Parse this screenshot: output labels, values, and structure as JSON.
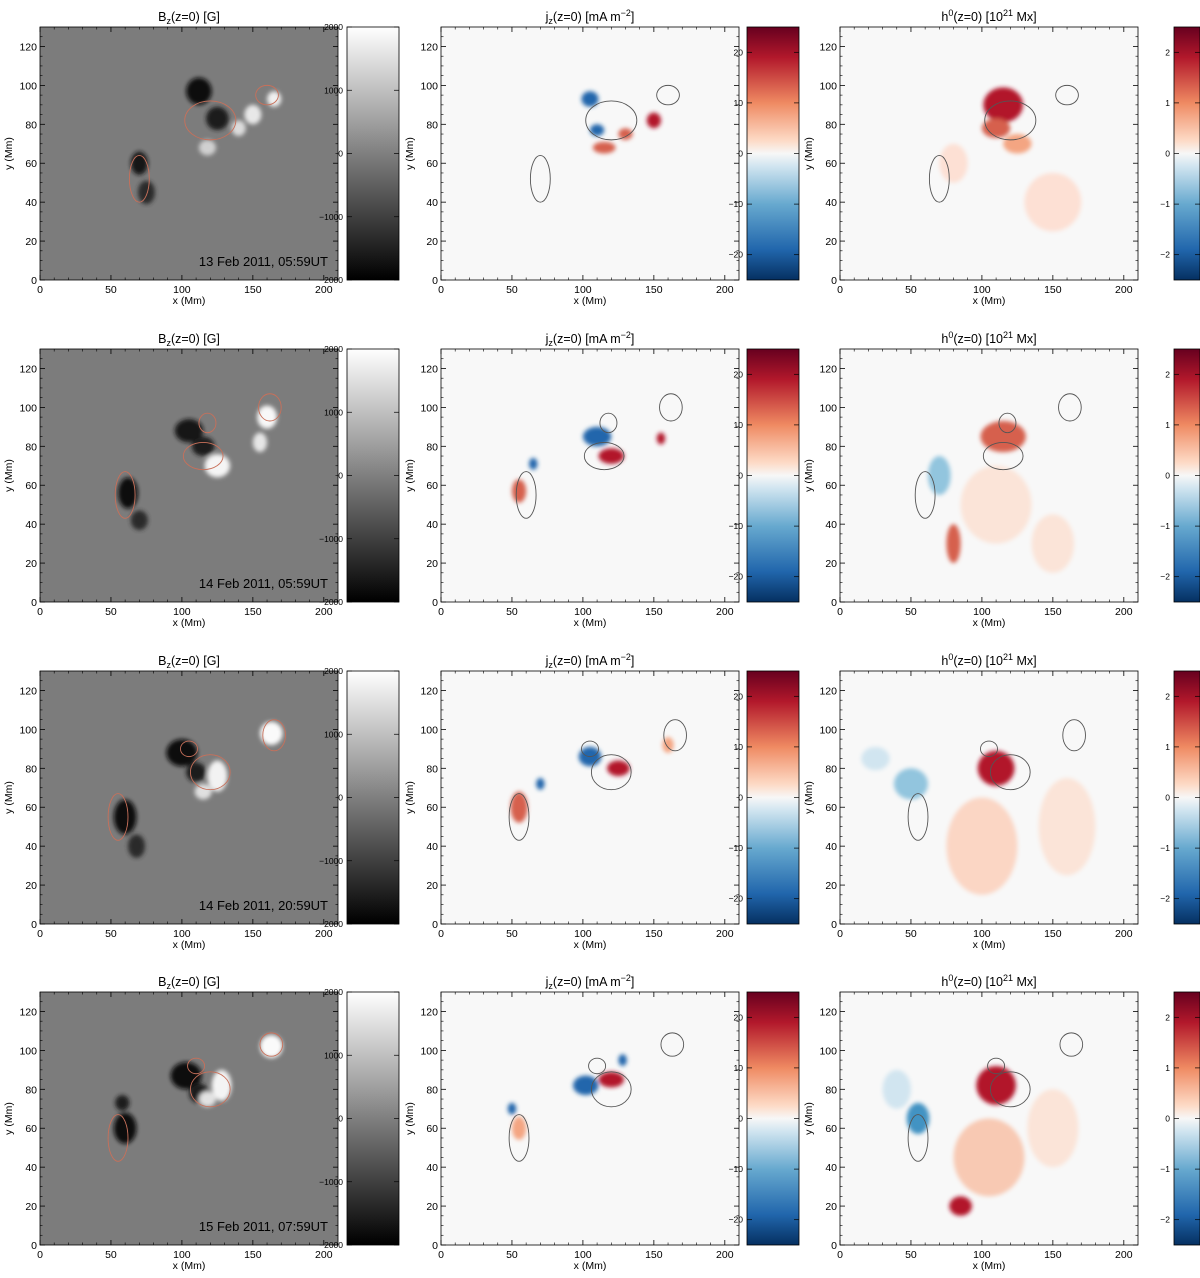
{
  "chart_data": [
    {
      "type": "heatmap",
      "rows": [
        {
          "timestamp": "13 Feb 2011, 05:59UT"
        },
        {
          "timestamp": "14 Feb 2011, 05:59UT"
        },
        {
          "timestamp": "14 Feb 2011, 20:59UT"
        },
        {
          "timestamp": "15 Feb 2011, 07:59UT"
        }
      ],
      "columns": [
        {
          "id": "bz",
          "title_main": "B",
          "title_sub": "z",
          "title_rest": "(z=0) [G]",
          "colormap": "gray",
          "cbar_ticks": [
            "2000",
            "1000",
            "0",
            "−1000",
            "−2000"
          ],
          "cbar_range": [
            -2000,
            2000
          ]
        },
        {
          "id": "jz",
          "title_main": "j",
          "title_sub": "z",
          "title_rest": "(z=0) [mA m",
          "title_sup": "−2",
          "title_end": "]",
          "colormap": "red-blue",
          "cbar_ticks": [
            "20",
            "10",
            "0",
            "−10",
            "−20"
          ],
          "cbar_range": [
            -25,
            25
          ]
        },
        {
          "id": "h0",
          "title_main": "h",
          "title_sup0": "0",
          "title_rest": "(z=0) [10",
          "title_sup": "21",
          "title_end": " Mx]",
          "colormap": "red-blue",
          "cbar_ticks": [
            "2",
            "1",
            "0",
            "−1",
            "−2"
          ],
          "cbar_range": [
            -2.5,
            2.5
          ]
        }
      ],
      "xlabel": "x (Mm)",
      "ylabel": "y (Mm)",
      "xticks": [
        "0",
        "50",
        "100",
        "150",
        "200"
      ],
      "yticks": [
        "0",
        "20",
        "40",
        "60",
        "80",
        "100",
        "120"
      ],
      "xlim": [
        0,
        210
      ],
      "ylim": [
        0,
        130
      ],
      "contour_colors": {
        "bz": "#c8705a",
        "jz": "#555555",
        "h0": "#555555"
      },
      "colors": {
        "red": "#a50f15",
        "blue": "#1f5fa8",
        "white": "#f7f7f7"
      }
    }
  ]
}
